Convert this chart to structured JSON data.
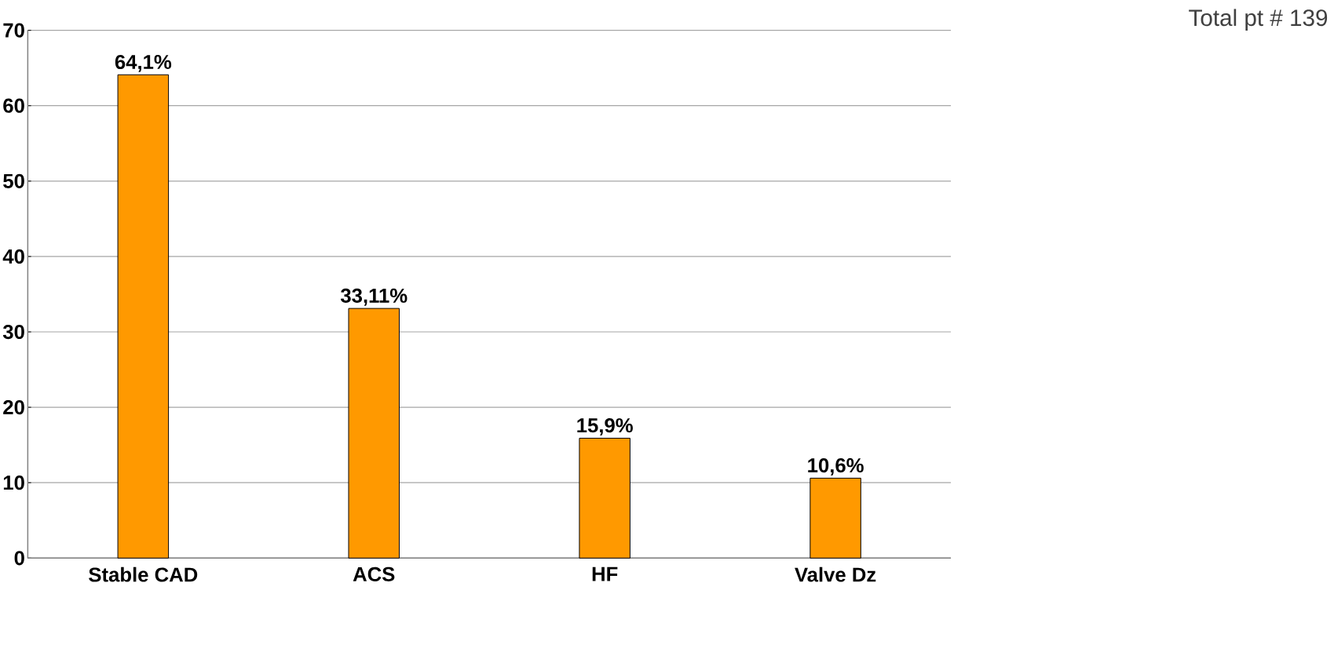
{
  "chart_data": {
    "type": "bar",
    "categories": [
      "Stable CAD",
      "ACS",
      "HF",
      "Valve Dz"
    ],
    "values": [
      64.1,
      33.11,
      15.9,
      10.6
    ],
    "value_labels": [
      "64,1%",
      "33,11%",
      "15,9%",
      "10,6%"
    ],
    "color": "#ff9900",
    "ylim": [
      0,
      70
    ],
    "yticks": [
      0,
      10,
      20,
      30,
      40,
      50,
      60,
      70
    ],
    "grid": "y",
    "annotations": [
      "Total pt # 139"
    ]
  }
}
